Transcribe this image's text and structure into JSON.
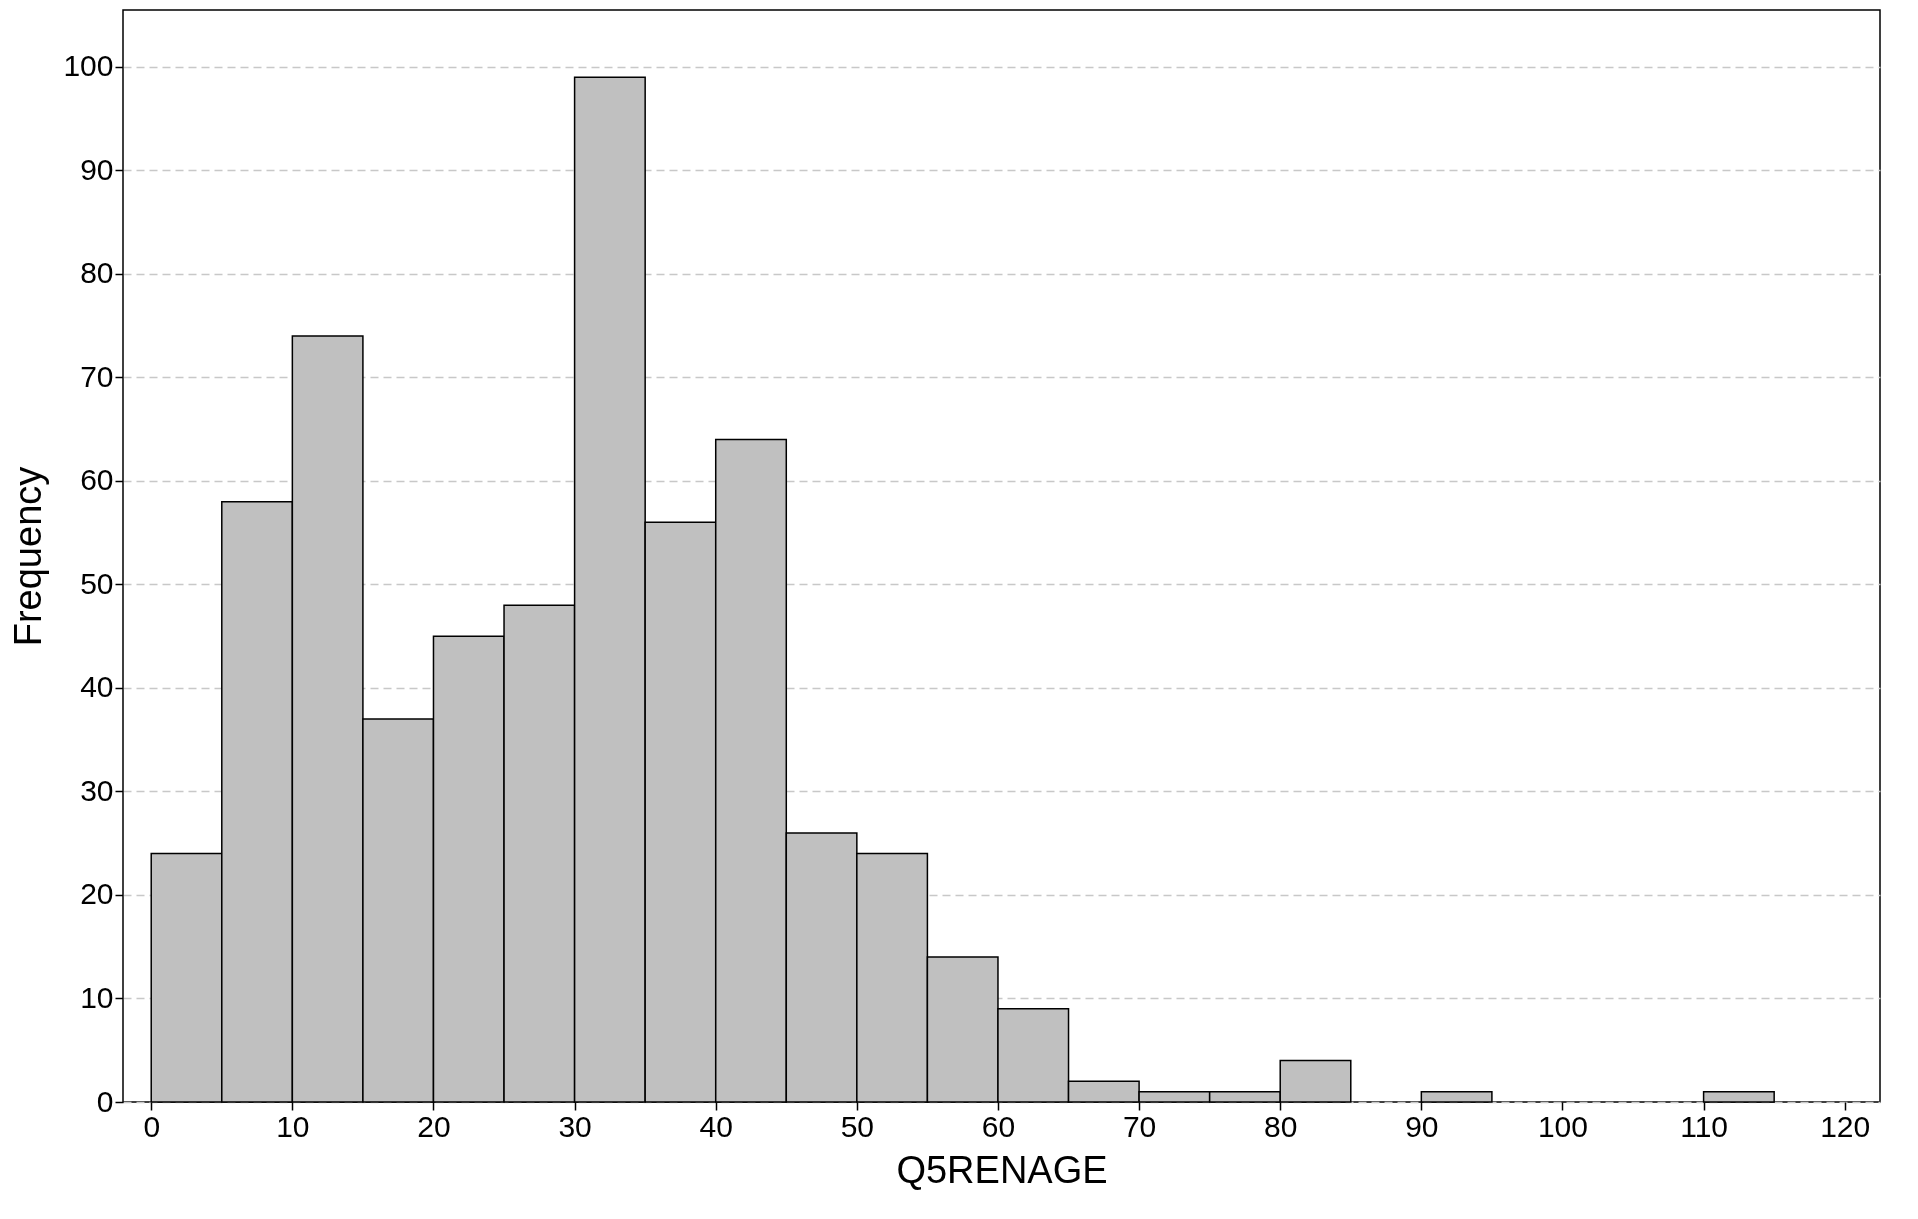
{
  "chart_data": {
    "type": "histogram",
    "xlabel": "Q5RENAGE",
    "ylabel": "Frequency",
    "bins": [
      0,
      5,
      10,
      15,
      20,
      25,
      30,
      35,
      40,
      45,
      50,
      55,
      60,
      65,
      70,
      75,
      80,
      85,
      90,
      95,
      100,
      105,
      110,
      115
    ],
    "values": [
      24,
      58,
      74,
      37,
      45,
      48,
      99,
      56,
      64,
      26,
      24,
      14,
      9,
      2,
      1,
      1,
      4,
      0,
      1,
      0,
      0,
      0,
      1
    ],
    "color": "#c0c0c0",
    "xlim": [
      -2,
      122.5
    ],
    "ylim": [
      0,
      105.5
    ],
    "xticks": [
      0,
      10,
      20,
      30,
      40,
      50,
      60,
      70,
      80,
      90,
      100,
      110,
      120
    ],
    "yticks": [
      0,
      10,
      20,
      30,
      40,
      50,
      60,
      70,
      80,
      90,
      100
    ],
    "grid": "y"
  }
}
